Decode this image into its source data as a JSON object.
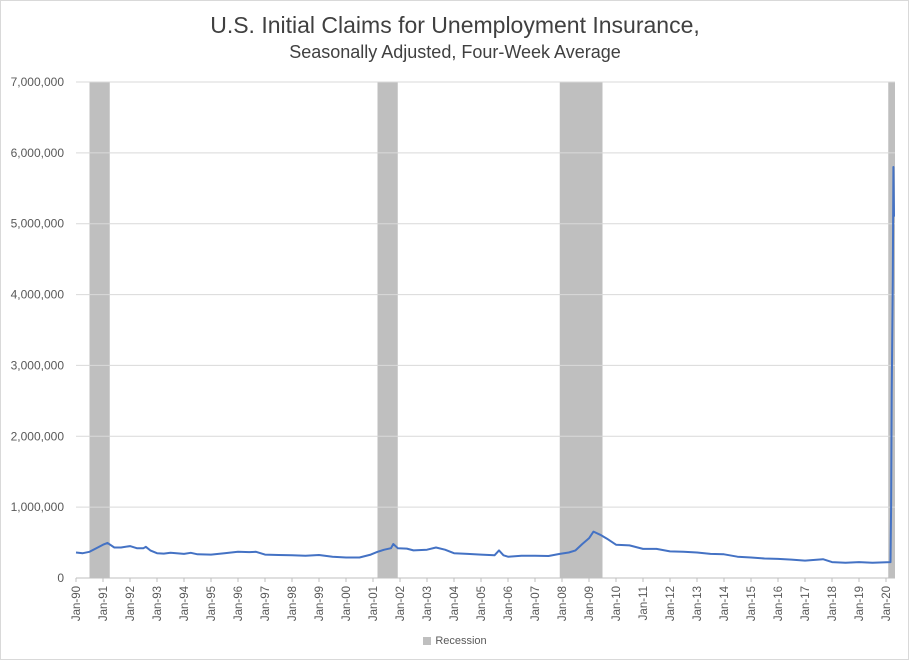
{
  "chart_data": {
    "type": "line",
    "title": "U.S. Initial Claims for Unemployment Insurance,",
    "subtitle": "Seasonally Adjusted, Four-Week Average",
    "xlabel": "",
    "ylabel": "",
    "ylim": [
      0,
      7000000
    ],
    "xlim": [
      "1990-01",
      "2020-04"
    ],
    "y_ticks": [
      "0",
      "1,000,000",
      "2,000,000",
      "3,000,000",
      "4,000,000",
      "5,000,000",
      "6,000,000",
      "7,000,000"
    ],
    "x_ticks": [
      "Jan-90",
      "Jan-91",
      "Jan-92",
      "Jan-93",
      "Jan-94",
      "Jan-95",
      "Jan-96",
      "Jan-97",
      "Jan-98",
      "Jan-99",
      "Jan-00",
      "Jan-01",
      "Jan-02",
      "Jan-03",
      "Jan-04",
      "Jan-05",
      "Jan-06",
      "Jan-07",
      "Jan-08",
      "Jan-09",
      "Jan-10",
      "Jan-11",
      "Jan-12",
      "Jan-13",
      "Jan-14",
      "Jan-15",
      "Jan-16",
      "Jan-17",
      "Jan-18",
      "Jan-19",
      "Jan-20"
    ],
    "grid": "horizontal",
    "legend": "bottom",
    "legend_entries": [
      "Recession"
    ],
    "recessions": [
      {
        "start": "1990-07",
        "end": "1991-03"
      },
      {
        "start": "2001-03",
        "end": "2001-11"
      },
      {
        "start": "2007-12",
        "end": "2009-06"
      },
      {
        "start": "2020-02",
        "end": "2020-04"
      }
    ],
    "series": [
      {
        "color": "#4472c4",
        "points": [
          [
            "1990-01",
            360000
          ],
          [
            "1990-04",
            350000
          ],
          [
            "1990-07",
            370000
          ],
          [
            "1990-10",
            420000
          ],
          [
            "1991-01",
            470000
          ],
          [
            "1991-03",
            495000
          ],
          [
            "1991-06",
            430000
          ],
          [
            "1991-09",
            430000
          ],
          [
            "1992-01",
            450000
          ],
          [
            "1992-04",
            420000
          ],
          [
            "1992-07",
            420000
          ],
          [
            "1992-08",
            440000
          ],
          [
            "1992-10",
            390000
          ],
          [
            "1993-01",
            350000
          ],
          [
            "1993-04",
            345000
          ],
          [
            "1993-07",
            355000
          ],
          [
            "1994-01",
            340000
          ],
          [
            "1994-04",
            355000
          ],
          [
            "1994-07",
            335000
          ],
          [
            "1995-01",
            330000
          ],
          [
            "1995-07",
            350000
          ],
          [
            "1996-01",
            370000
          ],
          [
            "1996-06",
            365000
          ],
          [
            "1996-09",
            370000
          ],
          [
            "1997-01",
            330000
          ],
          [
            "1997-07",
            325000
          ],
          [
            "1998-01",
            320000
          ],
          [
            "1998-07",
            315000
          ],
          [
            "1999-01",
            325000
          ],
          [
            "1999-07",
            300000
          ],
          [
            "2000-01",
            290000
          ],
          [
            "2000-07",
            290000
          ],
          [
            "2000-12",
            330000
          ],
          [
            "2001-03",
            370000
          ],
          [
            "2001-06",
            400000
          ],
          [
            "2001-09",
            420000
          ],
          [
            "2001-10",
            480000
          ],
          [
            "2001-12",
            420000
          ],
          [
            "2002-04",
            415000
          ],
          [
            "2002-07",
            390000
          ],
          [
            "2003-01",
            400000
          ],
          [
            "2003-05",
            430000
          ],
          [
            "2003-09",
            400000
          ],
          [
            "2004-01",
            350000
          ],
          [
            "2004-07",
            340000
          ],
          [
            "2005-01",
            330000
          ],
          [
            "2005-07",
            320000
          ],
          [
            "2005-09",
            390000
          ],
          [
            "2005-11",
            320000
          ],
          [
            "2006-01",
            300000
          ],
          [
            "2006-07",
            315000
          ],
          [
            "2007-01",
            315000
          ],
          [
            "2007-07",
            310000
          ],
          [
            "2007-12",
            340000
          ],
          [
            "2008-04",
            360000
          ],
          [
            "2008-07",
            390000
          ],
          [
            "2008-10",
            480000
          ],
          [
            "2009-01",
            560000
          ],
          [
            "2009-03",
            655000
          ],
          [
            "2009-06",
            610000
          ],
          [
            "2009-09",
            555000
          ],
          [
            "2010-01",
            470000
          ],
          [
            "2010-07",
            460000
          ],
          [
            "2011-01",
            410000
          ],
          [
            "2011-07",
            410000
          ],
          [
            "2012-01",
            375000
          ],
          [
            "2012-07",
            370000
          ],
          [
            "2013-01",
            360000
          ],
          [
            "2013-07",
            340000
          ],
          [
            "2014-01",
            335000
          ],
          [
            "2014-07",
            300000
          ],
          [
            "2015-01",
            290000
          ],
          [
            "2015-07",
            275000
          ],
          [
            "2016-01",
            270000
          ],
          [
            "2016-07",
            260000
          ],
          [
            "2017-01",
            245000
          ],
          [
            "2017-09",
            265000
          ],
          [
            "2018-01",
            225000
          ],
          [
            "2018-07",
            215000
          ],
          [
            "2019-01",
            225000
          ],
          [
            "2019-07",
            215000
          ],
          [
            "2020-03",
            225000
          ],
          [
            "2020-03",
            1000000
          ],
          [
            "2020-03",
            2600000
          ],
          [
            "2020-04",
            4200000
          ],
          [
            "2020-04",
            5800000
          ],
          [
            "2020-04",
            5100000
          ]
        ]
      }
    ]
  }
}
